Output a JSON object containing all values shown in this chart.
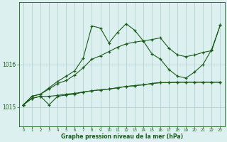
{
  "background_color": "#ddf0f0",
  "plot_bg_color": "#ddf0f0",
  "line_color": "#1a5c1a",
  "grid_color": "#aacaca",
  "xlabel": "Graphe pression niveau de la mer (hPa)",
  "xlabel_color": "#1a5c1a",
  "ytick_color": "#1a5c1a",
  "xtick_color": "#1a5c1a",
  "ylim": [
    1014.55,
    1017.45
  ],
  "yticks": [
    1015,
    1016
  ],
  "hours": [
    0,
    1,
    2,
    3,
    4,
    5,
    6,
    7,
    8,
    9,
    10,
    11,
    12,
    13,
    14,
    15,
    16,
    17,
    18,
    19,
    20,
    21,
    22,
    23
  ],
  "line1": [
    1015.05,
    1015.2,
    1015.25,
    1015.25,
    1015.27,
    1015.3,
    1015.32,
    1015.35,
    1015.38,
    1015.4,
    1015.42,
    1015.45,
    1015.48,
    1015.5,
    1015.52,
    1015.55,
    1015.57,
    1015.57,
    1015.58,
    1015.58,
    1015.58,
    1015.58,
    1015.58,
    1015.58
  ],
  "line2": [
    1015.05,
    1015.2,
    1015.25,
    1015.05,
    1015.25,
    1015.28,
    1015.3,
    1015.35,
    1015.38,
    1015.4,
    1015.42,
    1015.45,
    1015.48,
    1015.5,
    1015.52,
    1015.55,
    1015.57,
    1015.57,
    1015.58,
    1015.58,
    1015.58,
    1015.58,
    1015.58,
    1015.58
  ],
  "line3": [
    1015.05,
    1015.25,
    1015.3,
    1015.45,
    1015.6,
    1015.72,
    1015.85,
    1016.15,
    1016.9,
    1016.85,
    1016.5,
    1016.75,
    1016.95,
    1016.8,
    1016.55,
    1016.25,
    1016.12,
    1015.88,
    1015.72,
    1015.68,
    1015.82,
    1016.0,
    1016.35,
    1016.92
  ],
  "line4": [
    1015.05,
    1015.25,
    1015.3,
    1015.42,
    1015.55,
    1015.62,
    1015.75,
    1015.92,
    1016.12,
    1016.2,
    1016.3,
    1016.4,
    1016.48,
    1016.52,
    1016.55,
    1016.58,
    1016.62,
    1016.38,
    1016.22,
    1016.18,
    1016.22,
    1016.28,
    1016.32,
    1016.92
  ]
}
